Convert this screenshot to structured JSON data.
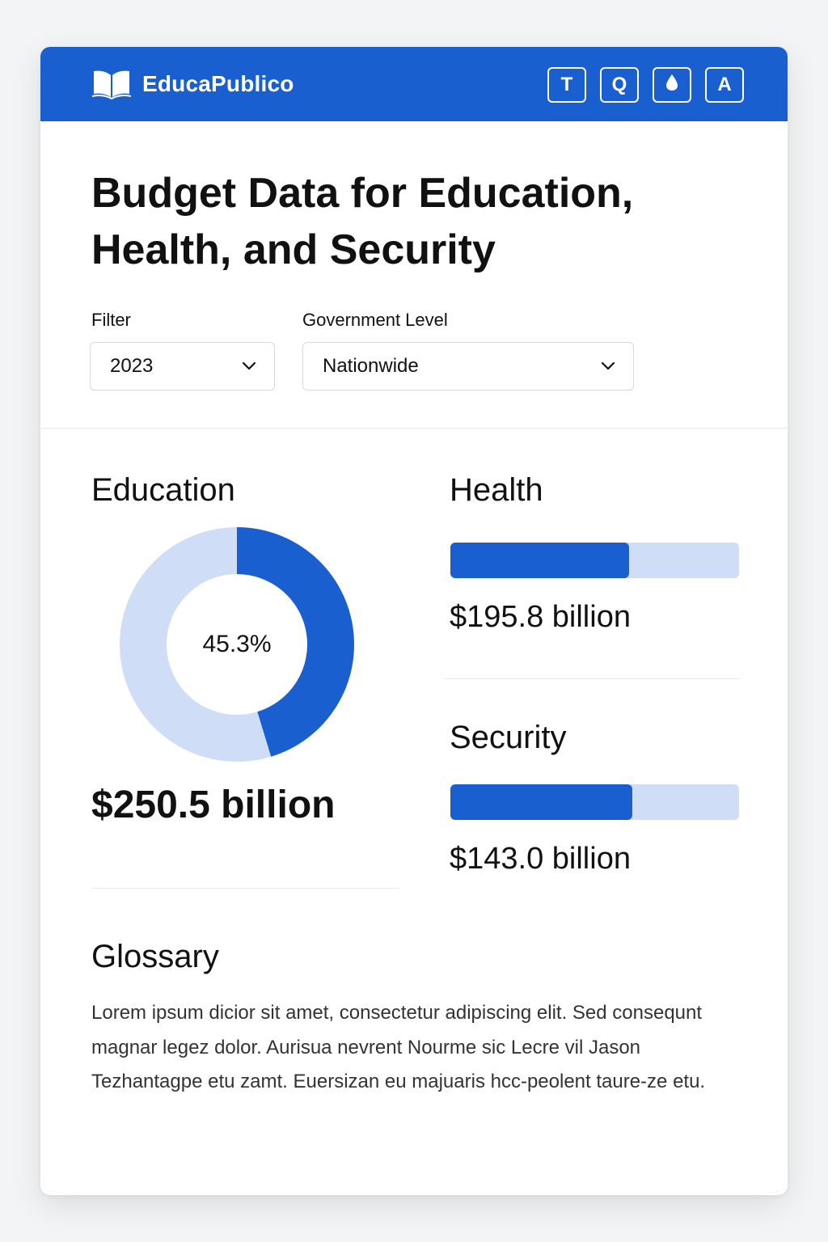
{
  "colors": {
    "brand": "#1a5fd0",
    "track": "#cfdef6",
    "background": "#f3f4f6",
    "text": "#111111"
  },
  "header": {
    "brand_name": "EducaPublico",
    "brand_icon": "open-book-icon",
    "buttons": [
      {
        "label": "T",
        "icon": "text-size-icon"
      },
      {
        "label": "Q",
        "icon": "search-icon"
      },
      {
        "label": "",
        "icon": "contrast-drop-icon"
      },
      {
        "label": "A",
        "icon": "accessibility-icon"
      }
    ]
  },
  "page": {
    "title": "Budget Data for Education, Health, and Security"
  },
  "filters": {
    "filter_label": "Filter",
    "filter_value": "2023",
    "level_label": "Government Level",
    "level_value": "Nationwide"
  },
  "education": {
    "title": "Education",
    "percent_label": "45.3%",
    "percent": 45.3,
    "value": "$250.5 billion"
  },
  "health": {
    "title": "Health",
    "fraction": 0.62,
    "value": "$195.8 billion"
  },
  "security": {
    "title": "Security",
    "fraction": 0.63,
    "value": "$143.0 billion"
  },
  "glossary": {
    "title": "Glossary",
    "text": "Lorem ipsum dicior sit amet, consectetur adipiscing elit. Sed consequnt magnar legez dolor. Aurisua nevrent Nourme sic Lecre vil Jason Tezhantagpe etu zamt. Euersizan eu majuaris hcc-peolent taure-ze etu."
  }
}
